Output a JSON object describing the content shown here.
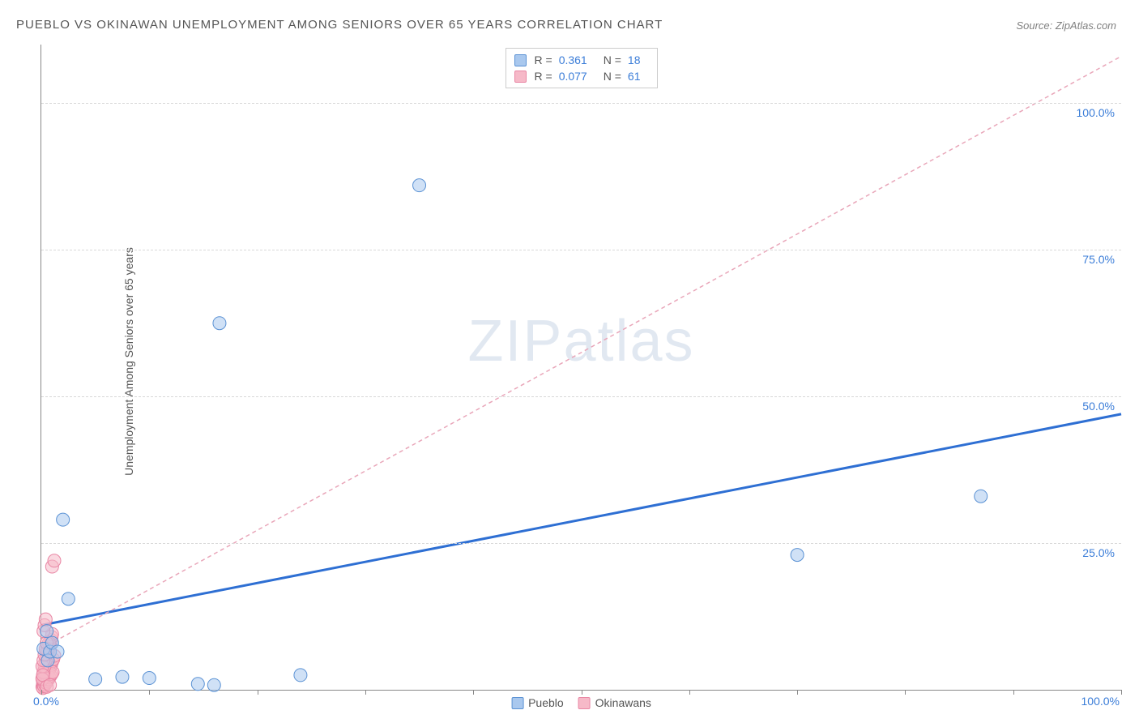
{
  "title": "PUEBLO VS OKINAWAN UNEMPLOYMENT AMONG SENIORS OVER 65 YEARS CORRELATION CHART",
  "source_label": "Source: ZipAtlas.com",
  "ylabel": "Unemployment Among Seniors over 65 years",
  "watermark": {
    "part1": "ZIP",
    "part2": "atlas"
  },
  "chart": {
    "type": "scatter",
    "background_color": "#ffffff",
    "grid_color": "#d8d8d8",
    "axis_color": "#888888",
    "xlim": [
      0,
      100
    ],
    "ylim": [
      0,
      110
    ],
    "xtick_positions": [
      0,
      10,
      20,
      30,
      40,
      50,
      60,
      70,
      80,
      90,
      100
    ],
    "xtick_labels": {
      "0": "0.0%",
      "100": "100.0%"
    },
    "ytick_positions": [
      25,
      50,
      75,
      100
    ],
    "ytick_labels": [
      "25.0%",
      "50.0%",
      "75.0%",
      "100.0%"
    ],
    "marker_radius": 8,
    "marker_opacity": 0.55,
    "series": [
      {
        "name": "Pueblo",
        "color_fill": "#a9c8ee",
        "color_stroke": "#5b92d4",
        "r_value": "0.361",
        "n_value": "18",
        "trend": {
          "x1": 0,
          "y1": 11,
          "x2": 100,
          "y2": 47,
          "stroke": "#2e6fd3",
          "width": 3,
          "dash": "none"
        },
        "points": [
          {
            "x": 0.2,
            "y": 7.0
          },
          {
            "x": 0.6,
            "y": 5.0
          },
          {
            "x": 0.8,
            "y": 6.5
          },
          {
            "x": 1.0,
            "y": 8.0
          },
          {
            "x": 0.5,
            "y": 10.0
          },
          {
            "x": 1.5,
            "y": 6.5
          },
          {
            "x": 2.0,
            "y": 29.0
          },
          {
            "x": 2.5,
            "y": 15.5
          },
          {
            "x": 5.0,
            "y": 1.8
          },
          {
            "x": 7.5,
            "y": 2.2
          },
          {
            "x": 10.0,
            "y": 2.0
          },
          {
            "x": 14.5,
            "y": 1.0
          },
          {
            "x": 16.0,
            "y": 0.8
          },
          {
            "x": 16.5,
            "y": 62.5
          },
          {
            "x": 24.0,
            "y": 2.5
          },
          {
            "x": 35.0,
            "y": 86.0
          },
          {
            "x": 70.0,
            "y": 23.0
          },
          {
            "x": 87.0,
            "y": 33.0
          }
        ]
      },
      {
        "name": "Okinawans",
        "color_fill": "#f6b9c8",
        "color_stroke": "#e986a4",
        "r_value": "0.077",
        "n_value": "61",
        "trend": {
          "x1": 0,
          "y1": 7,
          "x2": 100,
          "y2": 108,
          "stroke": "#e9a6b9",
          "width": 1.5,
          "dash": "5,4"
        },
        "points": [
          {
            "x": 0.1,
            "y": 0.5
          },
          {
            "x": 0.15,
            "y": 1.0
          },
          {
            "x": 0.2,
            "y": 1.5
          },
          {
            "x": 0.25,
            "y": 2.0
          },
          {
            "x": 0.3,
            "y": 2.5
          },
          {
            "x": 0.35,
            "y": 3.0
          },
          {
            "x": 0.4,
            "y": 3.5
          },
          {
            "x": 0.45,
            "y": 4.0
          },
          {
            "x": 0.5,
            "y": 4.5
          },
          {
            "x": 0.55,
            "y": 5.0
          },
          {
            "x": 0.6,
            "y": 5.5
          },
          {
            "x": 0.65,
            "y": 6.0
          },
          {
            "x": 0.7,
            "y": 6.5
          },
          {
            "x": 0.75,
            "y": 7.0
          },
          {
            "x": 0.8,
            "y": 7.5
          },
          {
            "x": 0.85,
            "y": 8.0
          },
          {
            "x": 0.9,
            "y": 8.5
          },
          {
            "x": 0.95,
            "y": 9.0
          },
          {
            "x": 1.0,
            "y": 9.5
          },
          {
            "x": 0.2,
            "y": 0.8
          },
          {
            "x": 0.3,
            "y": 1.2
          },
          {
            "x": 0.4,
            "y": 1.8
          },
          {
            "x": 0.5,
            "y": 2.2
          },
          {
            "x": 0.6,
            "y": 2.8
          },
          {
            "x": 0.7,
            "y": 3.2
          },
          {
            "x": 0.8,
            "y": 3.8
          },
          {
            "x": 0.9,
            "y": 4.2
          },
          {
            "x": 1.0,
            "y": 4.8
          },
          {
            "x": 1.1,
            "y": 5.2
          },
          {
            "x": 1.2,
            "y": 5.8
          },
          {
            "x": 0.15,
            "y": 0.3
          },
          {
            "x": 0.25,
            "y": 0.6
          },
          {
            "x": 0.35,
            "y": 0.9
          },
          {
            "x": 0.45,
            "y": 1.2
          },
          {
            "x": 0.55,
            "y": 1.5
          },
          {
            "x": 0.65,
            "y": 1.8
          },
          {
            "x": 0.75,
            "y": 2.1
          },
          {
            "x": 0.85,
            "y": 2.4
          },
          {
            "x": 0.95,
            "y": 2.7
          },
          {
            "x": 1.05,
            "y": 3.0
          },
          {
            "x": 0.1,
            "y": 2.0
          },
          {
            "x": 0.2,
            "y": 3.0
          },
          {
            "x": 0.3,
            "y": 4.0
          },
          {
            "x": 0.4,
            "y": 5.0
          },
          {
            "x": 0.5,
            "y": 6.0
          },
          {
            "x": 0.6,
            "y": 7.0
          },
          {
            "x": 0.7,
            "y": 8.0
          },
          {
            "x": 0.1,
            "y": 4.0
          },
          {
            "x": 0.2,
            "y": 5.0
          },
          {
            "x": 0.3,
            "y": 6.0
          },
          {
            "x": 0.4,
            "y": 7.0
          },
          {
            "x": 0.5,
            "y": 8.0
          },
          {
            "x": 0.2,
            "y": 10.0
          },
          {
            "x": 0.3,
            "y": 11.0
          },
          {
            "x": 0.4,
            "y": 12.0
          },
          {
            "x": 1.0,
            "y": 21.0
          },
          {
            "x": 1.2,
            "y": 22.0
          },
          {
            "x": 0.1,
            "y": 1.8
          },
          {
            "x": 0.15,
            "y": 2.5
          },
          {
            "x": 0.5,
            "y": 0.5
          },
          {
            "x": 0.8,
            "y": 0.8
          }
        ]
      }
    ],
    "legend_bottom": [
      {
        "label": "Pueblo",
        "fill": "#a9c8ee",
        "stroke": "#5b92d4"
      },
      {
        "label": "Okinawans",
        "fill": "#f6b9c8",
        "stroke": "#e986a4"
      }
    ]
  }
}
